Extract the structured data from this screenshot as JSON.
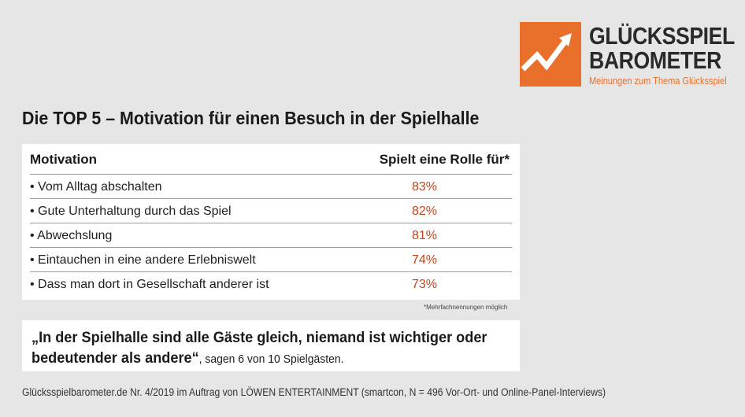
{
  "logo": {
    "line1": "GLÜCKSSPIEL",
    "line2": "BAROMETER",
    "tagline": "Meinungen zum Thema Glücksspiel",
    "accent": "#e8702a",
    "icon": "trend-arrow-icon"
  },
  "headline": "Die TOP 5 – Motivation für einen Besuch in der Spielhalle",
  "table": {
    "col_motivation": "Motivation",
    "col_role": "Spielt eine Rolle für*",
    "rows": [
      {
        "label": "• Vom Alltag abschalten",
        "value": "83%"
      },
      {
        "label": "• Gute Unterhaltung durch das Spiel",
        "value": "82%"
      },
      {
        "label": "• Abwechslung",
        "value": "81%"
      },
      {
        "label": "• Eintauchen in eine andere Erlebniswelt",
        "value": "74%"
      },
      {
        "label": "• Dass man dort in Gesellschaft anderer ist",
        "value": "73%"
      }
    ],
    "value_color": "#c8411b"
  },
  "footnote": "*Mehrfachnennungen möglich",
  "quote": {
    "line1": "„In der Spielhalle sind alle Gäste gleich, niemand ist wichtiger oder",
    "line2_bold": "bedeutender als andere“",
    "line2_rest": ", sagen 6 von 10 Spielgästen."
  },
  "source": "Glücksspielbarometer.de Nr. 4/2019 im Auftrag von LÖWEN ENTERTAINMENT (smartcon, N = 496 Vor-Ort- und Online-Panel-Interviews)"
}
